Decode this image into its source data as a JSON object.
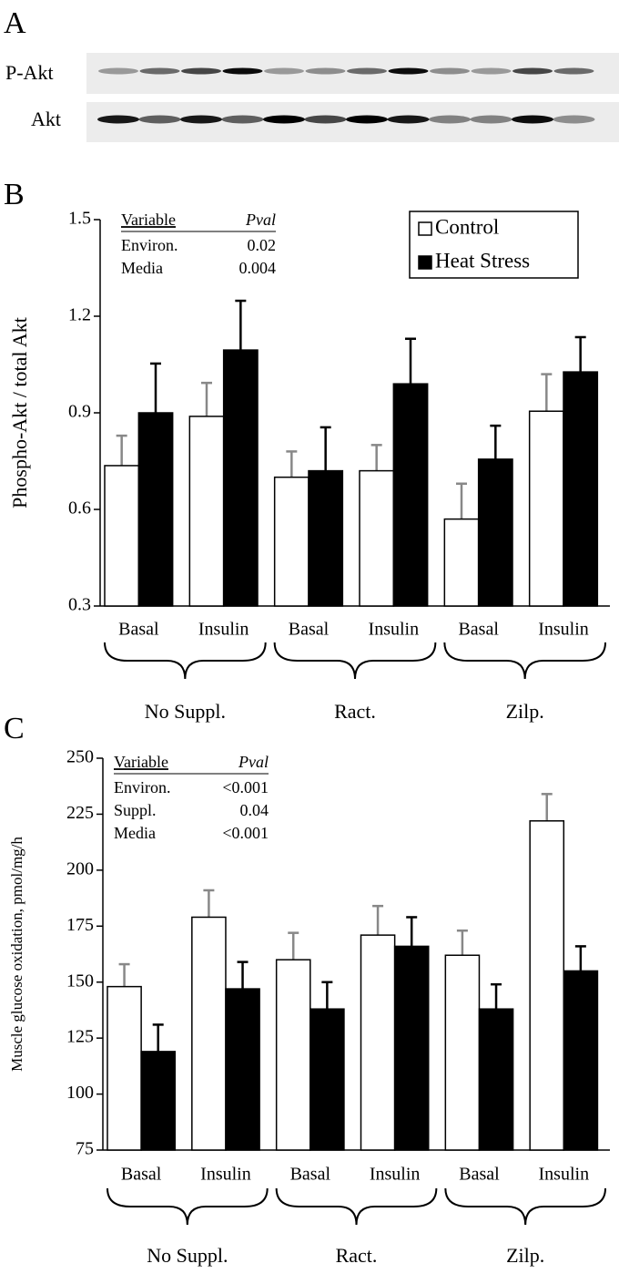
{
  "blot": {
    "label": "A",
    "rows": [
      "P-Akt",
      "Akt"
    ]
  },
  "chart_data": [
    {
      "type": "bar",
      "panel_label": "B",
      "ylabel": "Phospho-Akt / total Akt",
      "categories": [
        "Basal",
        "Insulin",
        "Basal",
        "Insulin",
        "Basal",
        "Insulin"
      ],
      "groups": [
        "No Suppl.",
        "Ract.",
        "Zilp."
      ],
      "series": [
        {
          "name": "Control",
          "color": "#ffffff",
          "error_color": "#888888",
          "values": [
            0.736,
            0.889,
            0.7,
            0.72,
            0.57,
            0.905
          ],
          "errors": [
            0.093,
            0.104,
            0.08,
            0.08,
            0.11,
            0.115
          ]
        },
        {
          "name": "Heat Stress",
          "color": "#000000",
          "error_color": "#000000",
          "values": [
            0.9,
            1.095,
            0.72,
            0.99,
            0.756,
            1.027
          ],
          "errors": [
            0.153,
            0.153,
            0.135,
            0.14,
            0.104,
            0.108
          ]
        }
      ],
      "ylim": [
        0.3,
        1.5
      ],
      "yticks": [
        0.3,
        0.6,
        0.9,
        1.2,
        1.5
      ],
      "legend": "upper right",
      "stats": {
        "header": [
          "Variable",
          "Pval"
        ],
        "rows": [
          [
            "Environ.",
            "0.02"
          ],
          [
            "Media",
            "0.004"
          ]
        ]
      }
    },
    {
      "type": "bar",
      "panel_label": "C",
      "ylabel": "Muscle glucose oxidation, pmol/mg/h",
      "categories": [
        "Basal",
        "Insulin",
        "Basal",
        "Insulin",
        "Basal",
        "Insulin"
      ],
      "groups": [
        "No Suppl.",
        "Ract.",
        "Zilp."
      ],
      "series": [
        {
          "name": "Control",
          "color": "#ffffff",
          "error_color": "#888888",
          "values": [
            148,
            179,
            160,
            171,
            162,
            222
          ],
          "errors": [
            10,
            12,
            12,
            13,
            11,
            12
          ]
        },
        {
          "name": "Heat Stress",
          "color": "#000000",
          "error_color": "#000000",
          "values": [
            119,
            147,
            138,
            166,
            138,
            155
          ],
          "errors": [
            12,
            12,
            12,
            13,
            11,
            11
          ]
        }
      ],
      "ylim": [
        75,
        250
      ],
      "yticks": [
        75,
        100,
        125,
        150,
        175,
        200,
        225,
        250
      ],
      "stats": {
        "header": [
          "Variable",
          "Pval"
        ],
        "rows": [
          [
            "Environ.",
            "<0.001"
          ],
          [
            "Suppl.",
            "0.04"
          ],
          [
            "Media",
            "<0.001"
          ]
        ]
      }
    }
  ]
}
